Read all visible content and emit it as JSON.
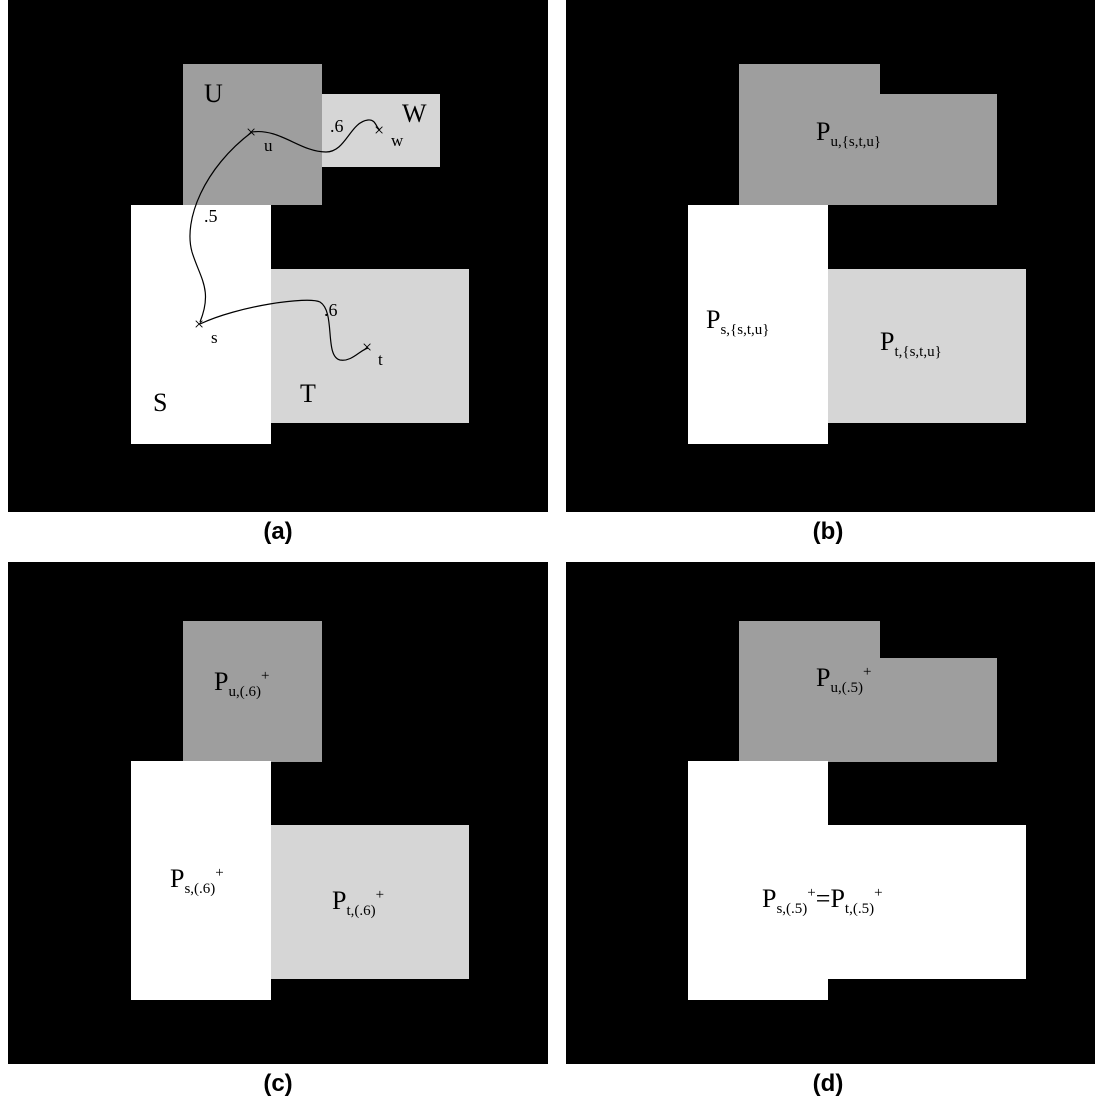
{
  "captions": {
    "a": "(a)",
    "b": "(b)",
    "c": "(c)",
    "d": "(d)"
  },
  "colors": {
    "background": "#000000",
    "dark_gray": "#9e9e9e",
    "light_gray": "#d6d6d6",
    "white": "#ffffff"
  },
  "panel_a": {
    "regions": {
      "U": "U",
      "W": "W",
      "S": "S",
      "T": "T"
    },
    "points": {
      "u": "u",
      "w": "w",
      "s": "s",
      "t": "t"
    },
    "cross": "×",
    "edge_weights": {
      "u_w": ".6",
      "u_s": ".5",
      "s_t": ".6"
    }
  },
  "panel_b": {
    "u": {
      "base": "P",
      "sub": "u,{s,t,u}"
    },
    "s": {
      "base": "P",
      "sub": "s,{s,t,u}"
    },
    "t": {
      "base": "P",
      "sub": "t,{s,t,u}"
    }
  },
  "panel_c": {
    "u": {
      "base": "P",
      "sub": "u,(.6)",
      "sup": "+"
    },
    "s": {
      "base": "P",
      "sub": "s,(.6)",
      "sup": "+"
    },
    "t": {
      "base": "P",
      "sub": "t,(.6)",
      "sup": "+"
    }
  },
  "panel_d": {
    "u": {
      "base": "P",
      "sub": "u,(.5)",
      "sup": "+"
    },
    "st_left": {
      "base": "P",
      "sub": "s,(.5)",
      "sup": "+"
    },
    "equals": "=",
    "st_right": {
      "base": "P",
      "sub": "t,(.5)",
      "sup": "+"
    }
  }
}
